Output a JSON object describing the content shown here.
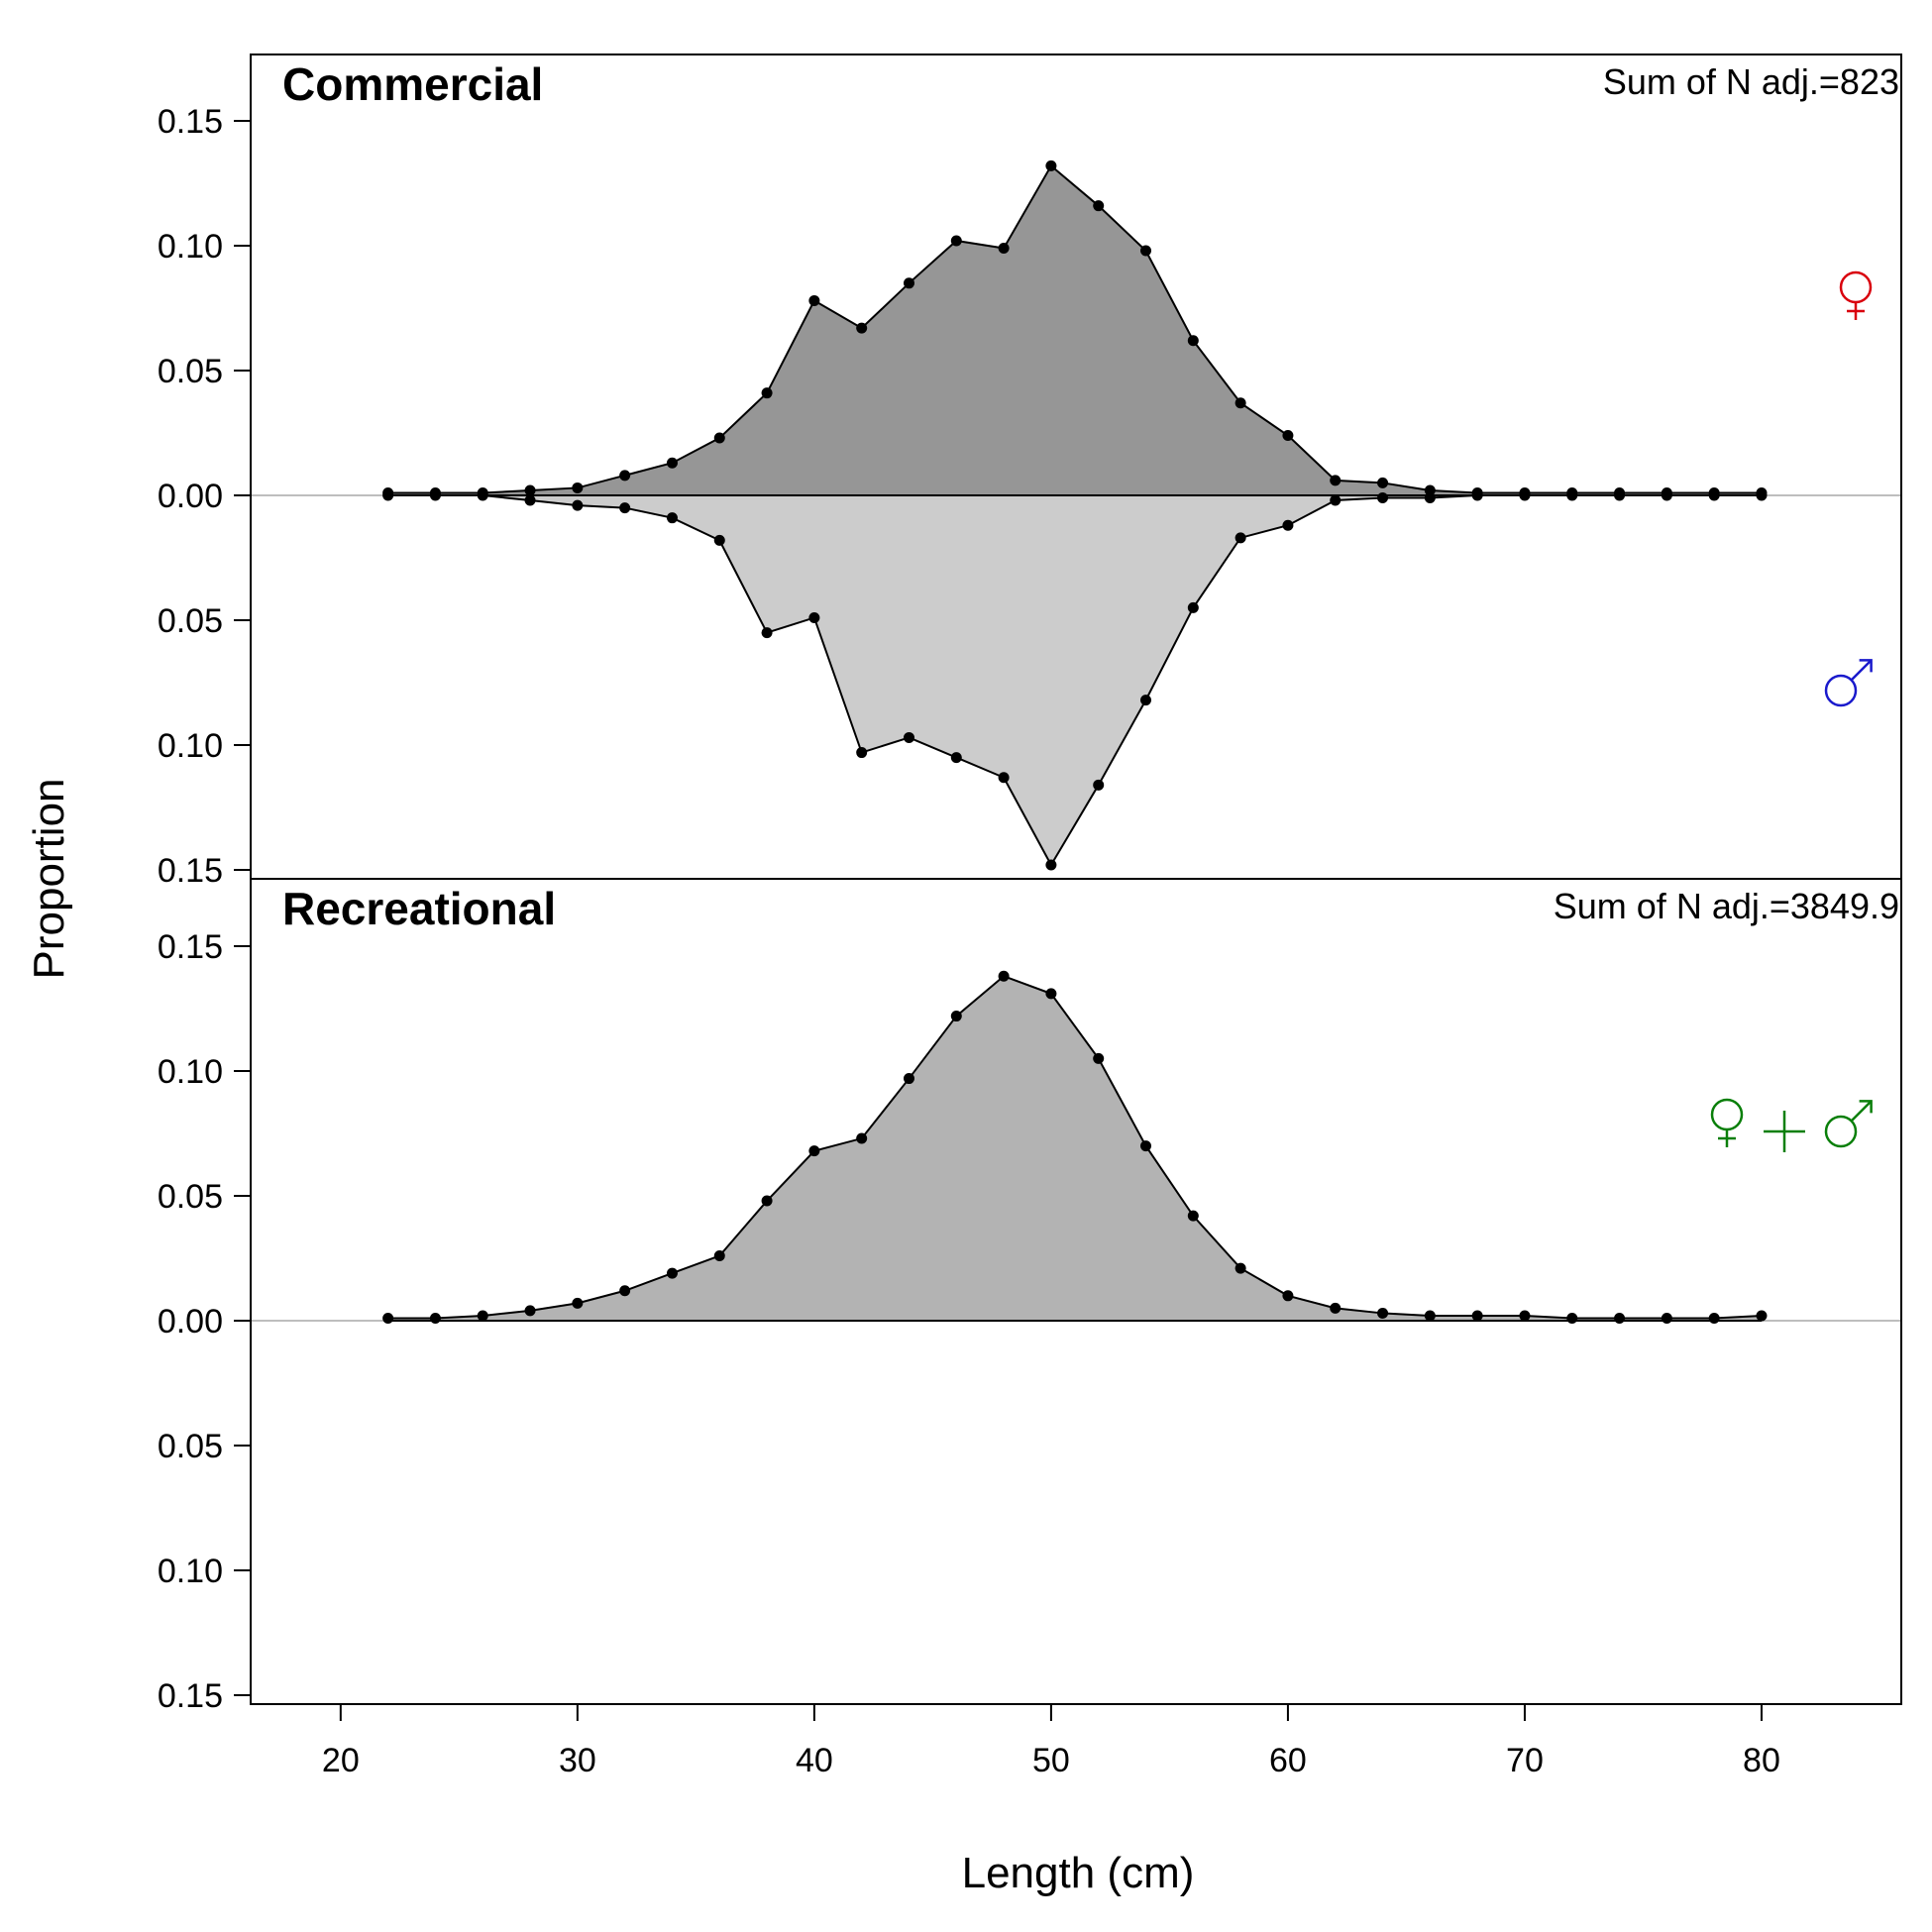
{
  "chart_data": {
    "type": "area",
    "xlabel": "Length (cm)",
    "ylabel": "Proportion",
    "xlim": [
      16.2,
      85.9
    ],
    "x_ticks": [
      20,
      30,
      40,
      50,
      60,
      70,
      80
    ],
    "y_tick_labels": [
      "0.15",
      "0.10",
      "0.05",
      "0.00",
      "0.05",
      "0.10",
      "0.15"
    ],
    "ylim_each_side": [
      0,
      0.15
    ],
    "grid": false,
    "colors": {
      "female_fill": "#969696",
      "male_fill": "#cccccc",
      "combined_fill": "#b3b3b3",
      "zero_line": "#bebebe",
      "female_symbol": "#d9000d",
      "male_symbol": "#1a1acc",
      "combined_symbol": "#0a7f0a"
    },
    "panels": [
      {
        "title": "Commercial",
        "sum_label": "Sum of N adj.=823",
        "x": [
          22,
          24,
          26,
          28,
          30,
          32,
          34,
          36,
          38,
          40,
          42,
          44,
          46,
          48,
          50,
          52,
          54,
          56,
          58,
          60,
          62,
          64,
          66,
          68,
          70,
          72,
          74,
          76,
          78,
          80
        ],
        "series": [
          {
            "name": "",
            "sex": "female",
            "symbol": "♀",
            "values": [
              0.001,
              0.001,
              0.001,
              0.002,
              0.003,
              0.008,
              0.013,
              0.023,
              0.041,
              0.078,
              0.067,
              0.085,
              0.102,
              0.099,
              0.132,
              0.116,
              0.098,
              0.062,
              0.037,
              0.024,
              0.006,
              0.005,
              0.002,
              0.001,
              0.001,
              0.001,
              0.001,
              0.001,
              0.001,
              0.001
            ]
          },
          {
            "name": "",
            "sex": "male",
            "symbol": "♂",
            "values": [
              0.0,
              0.0,
              0.0,
              0.002,
              0.004,
              0.005,
              0.009,
              0.018,
              0.055,
              0.049,
              0.103,
              0.097,
              0.105,
              0.113,
              0.148,
              0.116,
              0.082,
              0.045,
              0.017,
              0.012,
              0.002,
              0.001,
              0.001,
              0.0,
              0.0,
              0.0,
              0.0,
              0.0,
              0.0,
              0.0
            ]
          }
        ]
      },
      {
        "title": "Recreational",
        "sum_label": "Sum of N adj.=3849.9",
        "x": [
          22,
          24,
          26,
          28,
          30,
          32,
          34,
          36,
          38,
          40,
          42,
          44,
          46,
          48,
          50,
          52,
          54,
          56,
          58,
          60,
          62,
          64,
          66,
          68,
          70,
          72,
          74,
          76,
          78,
          80
        ],
        "series": [
          {
            "name": "",
            "sex": "combined",
            "symbol": "♀ + ♂",
            "values": [
              0.001,
              0.001,
              0.002,
              0.004,
              0.007,
              0.012,
              0.019,
              0.026,
              0.048,
              0.068,
              0.073,
              0.097,
              0.122,
              0.138,
              0.131,
              0.105,
              0.07,
              0.042,
              0.021,
              0.01,
              0.005,
              0.003,
              0.002,
              0.002,
              0.002,
              0.001,
              0.001,
              0.001,
              0.001,
              0.002
            ]
          }
        ]
      }
    ]
  }
}
